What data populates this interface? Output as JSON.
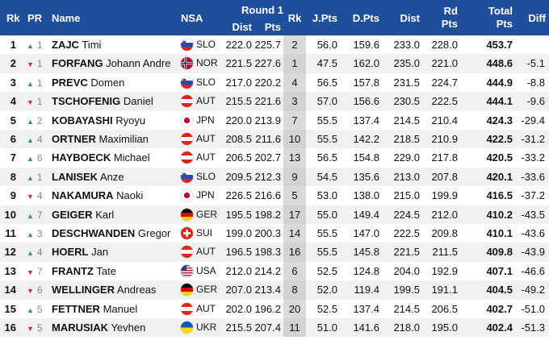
{
  "header": {
    "rk": "Rk",
    "pr": "PR",
    "name": "Name",
    "nsa": "NSA",
    "round": "Round 1",
    "dist": "Dist",
    "pts": "Pts",
    "rk2": "Rk",
    "jpts": "J.Pts",
    "dpts": "D.Pts",
    "dist2": "Dist",
    "rd_line1": "Rd",
    "rd_line2": "Pts",
    "total_line1": "Total",
    "total_line2": "Pts",
    "diff": "Diff"
  },
  "colors": {
    "header_bg": "#1f4e9c",
    "arrow_up": "#2e9e3a",
    "arrow_down": "#d0312d"
  },
  "rows": [
    {
      "rk": "1",
      "pr_dir": "up",
      "pr_arrow": "▲",
      "pr": "1",
      "last": "ZAJC",
      "first": "Timi",
      "flag": "SLO",
      "nsa": "SLO",
      "dist": "222.0",
      "pts": "225.7",
      "rk2": "2",
      "jpts": "56.0",
      "dpts": "159.6",
      "dist2": "233.0",
      "rdpts": "228.0",
      "total": "453.7",
      "diff": ""
    },
    {
      "rk": "2",
      "pr_dir": "down",
      "pr_arrow": "▼",
      "pr": "1",
      "last": "FORFANG",
      "first": "Johann Andre",
      "flag": "NOR",
      "nsa": "NOR",
      "dist": "221.5",
      "pts": "227.6",
      "rk2": "1",
      "jpts": "47.5",
      "dpts": "162.0",
      "dist2": "235.0",
      "rdpts": "221.0",
      "total": "448.6",
      "diff": "-5.1"
    },
    {
      "rk": "3",
      "pr_dir": "up",
      "pr_arrow": "▲",
      "pr": "1",
      "last": "PREVC",
      "first": "Domen",
      "flag": "SLO",
      "nsa": "SLO",
      "dist": "217.0",
      "pts": "220.2",
      "rk2": "4",
      "jpts": "56.5",
      "dpts": "157.8",
      "dist2": "231.5",
      "rdpts": "224.7",
      "total": "444.9",
      "diff": "-8.8"
    },
    {
      "rk": "4",
      "pr_dir": "down",
      "pr_arrow": "▼",
      "pr": "1",
      "last": "TSCHOFENIG",
      "first": "Daniel",
      "flag": "AUT",
      "nsa": "AUT",
      "dist": "215.5",
      "pts": "221.6",
      "rk2": "3",
      "jpts": "57.0",
      "dpts": "156.6",
      "dist2": "230.5",
      "rdpts": "222.5",
      "total": "444.1",
      "diff": "-9.6"
    },
    {
      "rk": "5",
      "pr_dir": "up",
      "pr_arrow": "▲",
      "pr": "2",
      "last": "KOBAYASHI",
      "first": "Ryoyu",
      "flag": "JPN",
      "nsa": "JPN",
      "dist": "220.0",
      "pts": "213.9",
      "rk2": "7",
      "jpts": "55.5",
      "dpts": "137.4",
      "dist2": "214.5",
      "rdpts": "210.4",
      "total": "424.3",
      "diff": "-29.4"
    },
    {
      "rk": "6",
      "pr_dir": "up",
      "pr_arrow": "▲",
      "pr": "4",
      "last": "ORTNER",
      "first": "Maximilian",
      "flag": "AUT",
      "nsa": "AUT",
      "dist": "208.5",
      "pts": "211.6",
      "rk2": "10",
      "jpts": "55.5",
      "dpts": "142.2",
      "dist2": "218.5",
      "rdpts": "210.9",
      "total": "422.5",
      "diff": "-31.2"
    },
    {
      "rk": "7",
      "pr_dir": "up",
      "pr_arrow": "▲",
      "pr": "6",
      "last": "HAYBOECK",
      "first": "Michael",
      "flag": "AUT",
      "nsa": "AUT",
      "dist": "206.5",
      "pts": "202.7",
      "rk2": "13",
      "jpts": "56.5",
      "dpts": "154.8",
      "dist2": "229.0",
      "rdpts": "217.8",
      "total": "420.5",
      "diff": "-33.2"
    },
    {
      "rk": "8",
      "pr_dir": "up",
      "pr_arrow": "▲",
      "pr": "1",
      "last": "LANISEK",
      "first": "Anze",
      "flag": "SLO",
      "nsa": "SLO",
      "dist": "209.5",
      "pts": "212.3",
      "rk2": "9",
      "jpts": "54.5",
      "dpts": "135.6",
      "dist2": "213.0",
      "rdpts": "207.8",
      "total": "420.1",
      "diff": "-33.6"
    },
    {
      "rk": "9",
      "pr_dir": "down",
      "pr_arrow": "▼",
      "pr": "4",
      "last": "NAKAMURA",
      "first": "Naoki",
      "flag": "JPN",
      "nsa": "JPN",
      "dist": "226.5",
      "pts": "216.6",
      "rk2": "5",
      "jpts": "53.0",
      "dpts": "138.0",
      "dist2": "215.0",
      "rdpts": "199.9",
      "total": "416.5",
      "diff": "-37.2"
    },
    {
      "rk": "10",
      "pr_dir": "up",
      "pr_arrow": "▲",
      "pr": "7",
      "last": "GEIGER",
      "first": "Karl",
      "flag": "GER",
      "nsa": "GER",
      "dist": "195.5",
      "pts": "198.2",
      "rk2": "17",
      "jpts": "55.0",
      "dpts": "149.4",
      "dist2": "224.5",
      "rdpts": "212.0",
      "total": "410.2",
      "diff": "-43.5"
    },
    {
      "rk": "11",
      "pr_dir": "up",
      "pr_arrow": "▲",
      "pr": "3",
      "last": "DESCHWANDEN",
      "first": "Gregor",
      "flag": "SUI",
      "nsa": "SUI",
      "dist": "199.0",
      "pts": "200.3",
      "rk2": "14",
      "jpts": "55.5",
      "dpts": "147.0",
      "dist2": "222.5",
      "rdpts": "209.8",
      "total": "410.1",
      "diff": "-43.6"
    },
    {
      "rk": "12",
      "pr_dir": "up",
      "pr_arrow": "▲",
      "pr": "4",
      "last": "HOERL",
      "first": "Jan",
      "flag": "AUT",
      "nsa": "AUT",
      "dist": "196.5",
      "pts": "198.3",
      "rk2": "16",
      "jpts": "55.5",
      "dpts": "145.8",
      "dist2": "221.5",
      "rdpts": "211.5",
      "total": "409.8",
      "diff": "-43.9"
    },
    {
      "rk": "13",
      "pr_dir": "down",
      "pr_arrow": "▼",
      "pr": "7",
      "last": "FRANTZ",
      "first": "Tate",
      "flag": "USA",
      "nsa": "USA",
      "dist": "212.0",
      "pts": "214.2",
      "rk2": "6",
      "jpts": "52.5",
      "dpts": "124.8",
      "dist2": "204.0",
      "rdpts": "192.9",
      "total": "407.1",
      "diff": "-46.6"
    },
    {
      "rk": "14",
      "pr_dir": "down",
      "pr_arrow": "▼",
      "pr": "6",
      "last": "WELLINGER",
      "first": "Andreas",
      "flag": "GER",
      "nsa": "GER",
      "dist": "207.0",
      "pts": "213.4",
      "rk2": "8",
      "jpts": "52.0",
      "dpts": "119.4",
      "dist2": "199.5",
      "rdpts": "191.1",
      "total": "404.5",
      "diff": "-49.2"
    },
    {
      "rk": "15",
      "pr_dir": "up",
      "pr_arrow": "▲",
      "pr": "5",
      "last": "FETTNER",
      "first": "Manuel",
      "flag": "AUT",
      "nsa": "AUT",
      "dist": "202.0",
      "pts": "196.2",
      "rk2": "20",
      "jpts": "52.5",
      "dpts": "137.4",
      "dist2": "214.5",
      "rdpts": "206.5",
      "total": "402.7",
      "diff": "-51.0"
    },
    {
      "rk": "16",
      "pr_dir": "down",
      "pr_arrow": "▼",
      "pr": "5",
      "last": "MARUSIAK",
      "first": "Yevhen",
      "flag": "UKR",
      "nsa": "UKR",
      "dist": "215.5",
      "pts": "207.4",
      "rk2": "11",
      "jpts": "51.0",
      "dpts": "141.6",
      "dist2": "218.0",
      "rdpts": "195.0",
      "total": "402.4",
      "diff": "-51.3"
    }
  ]
}
